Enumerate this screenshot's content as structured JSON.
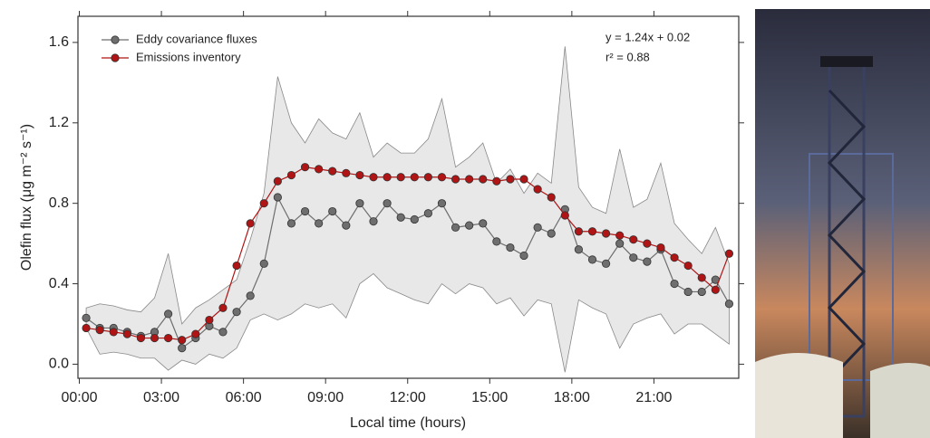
{
  "chart_data": {
    "type": "line",
    "xlabel": "Local time (hours)",
    "ylabel": "Olefin flux (μg m⁻² s⁻¹)",
    "annotations": [
      "y = 1.24x + 0.02",
      "r² = 0.88"
    ],
    "x": [
      0.25,
      0.75,
      1.25,
      1.75,
      2.25,
      2.75,
      3.25,
      3.75,
      4.25,
      4.75,
      5.25,
      5.75,
      6.25,
      6.75,
      7.25,
      7.75,
      8.25,
      8.75,
      9.25,
      9.75,
      10.25,
      10.75,
      11.25,
      11.75,
      12.25,
      12.75,
      13.25,
      13.75,
      14.25,
      14.75,
      15.25,
      15.75,
      16.25,
      16.75,
      17.25,
      17.75,
      18.25,
      18.75,
      19.25,
      19.75,
      20.25,
      20.75,
      21.25,
      21.75,
      22.25,
      22.75,
      23.25,
      23.75
    ],
    "series": [
      {
        "name": "Eddy covariance fluxes",
        "color": "#6e6e6e",
        "values": [
          0.23,
          0.18,
          0.18,
          0.16,
          0.14,
          0.16,
          0.25,
          0.08,
          0.13,
          0.19,
          0.16,
          0.26,
          0.34,
          0.5,
          0.83,
          0.7,
          0.76,
          0.7,
          0.76,
          0.69,
          0.8,
          0.71,
          0.8,
          0.73,
          0.72,
          0.75,
          0.8,
          0.68,
          0.69,
          0.7,
          0.61,
          0.58,
          0.54,
          0.68,
          0.65,
          0.77,
          0.57,
          0.52,
          0.5,
          0.6,
          0.53,
          0.51,
          0.57,
          0.4,
          0.36,
          0.36,
          0.42,
          0.3
        ]
      },
      {
        "name": "Emissions inventory",
        "color": "#b01414",
        "values": [
          0.18,
          0.17,
          0.16,
          0.15,
          0.13,
          0.13,
          0.13,
          0.12,
          0.15,
          0.22,
          0.28,
          0.49,
          0.7,
          0.8,
          0.91,
          0.94,
          0.98,
          0.97,
          0.96,
          0.95,
          0.94,
          0.93,
          0.93,
          0.93,
          0.93,
          0.93,
          0.93,
          0.92,
          0.92,
          0.92,
          0.91,
          0.92,
          0.92,
          0.87,
          0.83,
          0.74,
          0.66,
          0.66,
          0.65,
          0.64,
          0.62,
          0.6,
          0.58,
          0.53,
          0.49,
          0.43,
          0.37,
          0.55
        ]
      }
    ],
    "range": {
      "color": "#e8e8e8",
      "upper": [
        0.28,
        0.3,
        0.29,
        0.27,
        0.26,
        0.33,
        0.55,
        0.2,
        0.28,
        0.32,
        0.37,
        0.42,
        0.62,
        0.85,
        1.43,
        1.2,
        1.1,
        1.22,
        1.15,
        1.12,
        1.25,
        1.03,
        1.1,
        1.05,
        1.05,
        1.12,
        1.32,
        0.98,
        1.03,
        1.1,
        0.9,
        0.97,
        0.85,
        0.95,
        0.9,
        1.58,
        0.88,
        0.78,
        0.75,
        1.07,
        0.78,
        0.82,
        1.0,
        0.7,
        0.62,
        0.55,
        0.68,
        0.5
      ],
      "lower": [
        0.18,
        0.05,
        0.06,
        0.05,
        0.03,
        0.03,
        -0.03,
        0.02,
        0.0,
        0.05,
        0.03,
        0.08,
        0.22,
        0.25,
        0.22,
        0.25,
        0.3,
        0.28,
        0.3,
        0.23,
        0.4,
        0.45,
        0.38,
        0.35,
        0.32,
        0.3,
        0.4,
        0.35,
        0.4,
        0.38,
        0.3,
        0.33,
        0.24,
        0.32,
        0.3,
        -0.04,
        0.32,
        0.28,
        0.25,
        0.08,
        0.2,
        0.23,
        0.25,
        0.15,
        0.2,
        0.2,
        0.15,
        0.1
      ]
    },
    "xlim": [
      -0.05,
      24.1
    ],
    "ylim": [
      -0.07,
      1.73
    ],
    "xticks": [
      {
        "value": 0,
        "label": "00:00"
      },
      {
        "value": 3,
        "label": "03:00"
      },
      {
        "value": 6,
        "label": "06:00"
      },
      {
        "value": 9,
        "label": "09:00"
      },
      {
        "value": 12,
        "label": "12:00"
      },
      {
        "value": 15,
        "label": "15:00"
      },
      {
        "value": 18,
        "label": "18:00"
      },
      {
        "value": 21,
        "label": "21:00"
      }
    ],
    "yticks": [
      {
        "value": 0,
        "label": "0.0"
      },
      0.4,
      0.8,
      1.2,
      1.6
    ],
    "grid": false,
    "legend": "upper left"
  }
}
